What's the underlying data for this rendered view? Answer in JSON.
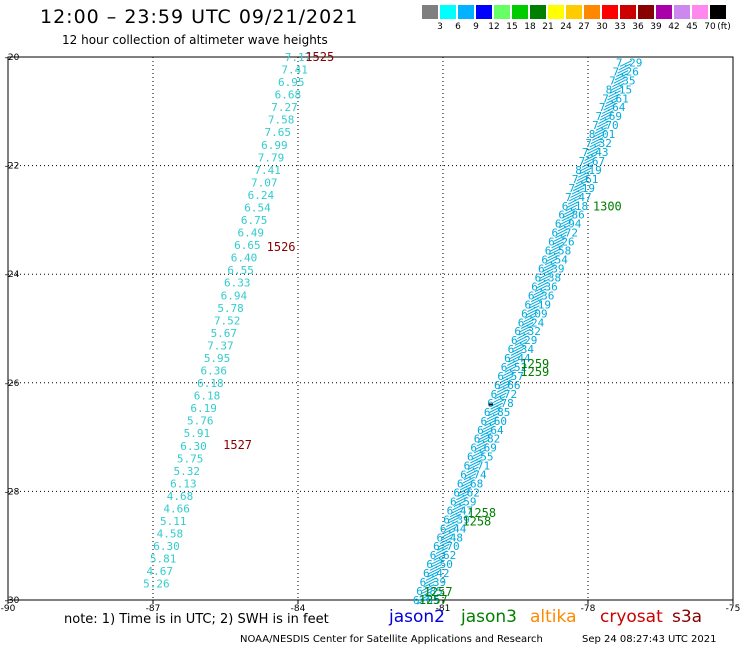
{
  "header": {
    "title": "12:00 – 23:59 UTC 09/21/2021",
    "subtitle": "12 hour collection of altimeter wave heights"
  },
  "legend": {
    "unit": "(ft)",
    "bins": [
      {
        "label": "3",
        "color": "#7f7f7f"
      },
      {
        "label": "6",
        "color": "#00ffff"
      },
      {
        "label": "9",
        "color": "#00b2ff"
      },
      {
        "label": "12",
        "color": "#0000ff"
      },
      {
        "label": "15",
        "color": "#66ff66"
      },
      {
        "label": "18",
        "color": "#00cc00"
      },
      {
        "label": "21",
        "color": "#007f00"
      },
      {
        "label": "24",
        "color": "#ffff00"
      },
      {
        "label": "27",
        "color": "#ffcc00"
      },
      {
        "label": "30",
        "color": "#ff8800"
      },
      {
        "label": "33",
        "color": "#ff0000"
      },
      {
        "label": "36",
        "color": "#cc0000"
      },
      {
        "label": "39",
        "color": "#880000"
      },
      {
        "label": "42",
        "color": "#aa00aa"
      },
      {
        "label": "45",
        "color": "#cc88ee"
      },
      {
        "label": "70",
        "color": "#ff88ee"
      },
      {
        "label": "",
        "color": "#000000"
      }
    ]
  },
  "chart_data": {
    "type": "scatter",
    "xlim": [
      -90,
      -75
    ],
    "ylim": [
      -30,
      -20
    ],
    "x_ticks": [
      "-90",
      "-87",
      "-84",
      "-81",
      "-78",
      "-75"
    ],
    "y_ticks": [
      "-20",
      "-22",
      "-24",
      "-26",
      "-28",
      "-30"
    ],
    "grid": true,
    "series": [
      {
        "name": "cryosat",
        "color": "#33cccc",
        "track_start": [
          -84.0,
          -20.0
        ],
        "track_end": [
          -86.93,
          -29.7
        ],
        "values": [
          "7.17",
          "7.41",
          "6.95",
          "6.68",
          "7.27",
          "7.58",
          "7.65",
          "6.99",
          "7.79",
          "7.41",
          "7.07",
          "6.24",
          "6.54",
          "6.75",
          "6.49",
          "6.65",
          "6.40",
          "6.55",
          "6.33",
          "6.94",
          "5.78",
          "7.52",
          "5.67",
          "7.37",
          "5.95",
          "6.36",
          "6.18",
          "6.18",
          "6.19",
          "5.76",
          "5.91",
          "6.30",
          "5.75",
          "5.32",
          "6.13",
          "4.68",
          "4.66",
          "5.11",
          "4.58",
          "6.30",
          "5.81",
          "4.67",
          "5.26"
        ],
        "time_labels": [
          {
            "text": "1525",
            "x": -83.55,
            "y": -20.0
          },
          {
            "text": "1526",
            "x": -84.35,
            "y": -23.5
          },
          {
            "text": "1527",
            "x": -85.25,
            "y": -27.15
          }
        ],
        "label_color": "#880000"
      },
      {
        "name": "jason3 pass",
        "color": "#00aadd",
        "track_start": [
          -77.15,
          -20.1
        ],
        "track_end": [
          -81.35,
          -30.0
        ],
        "dense": true,
        "values": [
          "7.29",
          "7.26",
          "7.35",
          "8.15",
          "7.61",
          "7.64",
          "7.69",
          "7.70",
          "8.01",
          "7.32",
          "7.43",
          "7.67",
          "8.19",
          "7.61",
          "7.19",
          "7.47",
          "6.18",
          "6.86",
          "6.94",
          "6.72",
          "6.26",
          "6.58",
          "6.54",
          "6.39",
          "6.38",
          "6.36",
          "6.36",
          "6.19",
          "6.09",
          "6.24",
          "6.32",
          "6.29",
          "6.34",
          "6.44",
          "6.52",
          "6.57",
          "6.66",
          "6.72",
          "6.78",
          "6.85",
          "6.60",
          "6.64",
          "6.82",
          "6.69",
          "6.55",
          "6.71",
          "6.74",
          "6.68",
          "6.62",
          "6.59",
          "6.47",
          "6.39",
          "6.44",
          "6.48",
          "6.70",
          "6.62",
          "6.50",
          "6.42",
          "6.39",
          "6.85",
          "6.65"
        ],
        "time_labels": [
          {
            "text": "1300",
            "x": -77.6,
            "y": -22.75
          },
          {
            "text": "1259",
            "x": -79.1,
            "y": -25.65
          },
          {
            "text": "1259",
            "x": -79.1,
            "y": -25.8
          },
          {
            "text": "1258",
            "x": -80.2,
            "y": -28.4
          },
          {
            "text": "1258",
            "x": -80.3,
            "y": -28.55
          },
          {
            "text": "1257",
            "x": -81.1,
            "y": -29.85
          },
          {
            "text": "1257",
            "x": -81.2,
            "y": -30.0
          }
        ],
        "label_color": "#007f00"
      }
    ]
  },
  "footer": {
    "note": "note: 1) Time is in UTC; 2) SWH is in feet",
    "satellites": [
      {
        "name": "jason2",
        "color": "#0000dd"
      },
      {
        "name": "jason3",
        "color": "#007f00"
      },
      {
        "name": "altika",
        "color": "#ff8800"
      },
      {
        "name": "cryosat",
        "color": "#cc0000"
      },
      {
        "name": "s3a",
        "color": "#880000"
      }
    ],
    "credit": "NOAA/NESDIS Center for Satellite Applications and Research",
    "timestamp": "Sep 24 08:27:43 UTC 2021"
  }
}
